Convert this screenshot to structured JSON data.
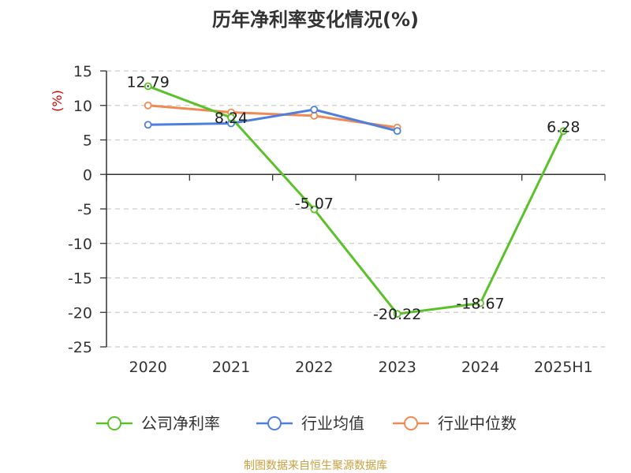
{
  "chart_data": {
    "type": "line",
    "title": "历年净利率变化情况(%)",
    "ylabel": "(%)",
    "categories": [
      "2020",
      "2021",
      "2022",
      "2023",
      "2024",
      "2025H1"
    ],
    "ylim": [
      -25,
      15
    ],
    "yticks": [
      15,
      10,
      5,
      0,
      -5,
      -10,
      -15,
      -20,
      -25
    ],
    "grid": true,
    "legend_position": "bottom",
    "series": [
      {
        "name": "公司净利率",
        "color": "#5ac12b",
        "values": [
          12.79,
          8.24,
          -5.07,
          -20.22,
          -18.67,
          6.28
        ],
        "labels": [
          "12.79",
          "8.24",
          "-5.07",
          "-20.22",
          "-18.67",
          "6.28"
        ]
      },
      {
        "name": "行业均值",
        "color": "#4f7fdc",
        "values": [
          7.2,
          7.4,
          9.4,
          6.3,
          null,
          null
        ]
      },
      {
        "name": "行业中位数",
        "color": "#f08a55",
        "values": [
          10.0,
          9.0,
          8.5,
          6.8,
          null,
          null
        ]
      }
    ]
  },
  "colors": {
    "title": "#333333",
    "axis": "#333333",
    "grid": "#cccccc",
    "ylabel": "#cc0000",
    "source": "#c8a040"
  },
  "source": "制图数据来自恒生聚源数据库"
}
